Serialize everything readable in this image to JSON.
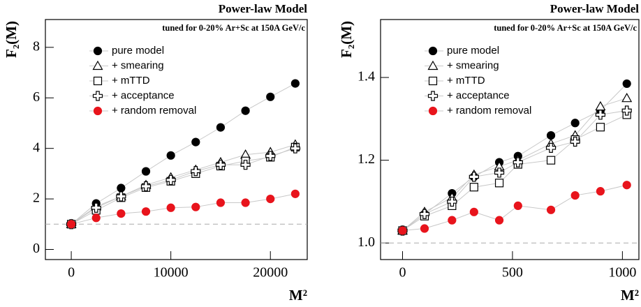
{
  "chart_data": [
    {
      "type": "scatter",
      "title": "Power-law Model",
      "subtitle": "tuned for 0-20% Ar+Sc at 150A GeV/c",
      "x_label": "M²",
      "y_label": "F₂(M)",
      "xlim": [
        -2600,
        23700
      ],
      "ylim": [
        -0.4,
        9.1
      ],
      "xticks": [
        0,
        10000,
        20000
      ],
      "yticks": [
        0,
        2,
        4,
        6,
        8
      ],
      "reference_line": 1,
      "x": [
        0,
        2500,
        5000,
        7500,
        10000,
        12500,
        15000,
        17500,
        20000,
        22500
      ],
      "series": [
        {
          "name": "pure model",
          "color": "#000000",
          "marker": "circle",
          "values": [
            1.0,
            1.82,
            2.43,
            3.09,
            3.72,
            4.25,
            4.83,
            5.49,
            6.04,
            6.57
          ]
        },
        {
          "name": "+ smearing",
          "color": "#000000",
          "marker": "triangle",
          "values": [
            1.0,
            1.7,
            2.1,
            2.55,
            2.85,
            3.15,
            3.45,
            3.75,
            3.85,
            4.15
          ]
        },
        {
          "name": "+ mTTD",
          "color": "#000000",
          "marker": "square",
          "values": [
            1.0,
            1.55,
            2.05,
            2.45,
            2.7,
            3.0,
            3.3,
            3.5,
            3.65,
            4.05
          ]
        },
        {
          "name": "+ acceptance",
          "color": "#000000",
          "marker": "cross",
          "values": [
            1.0,
            1.65,
            2.1,
            2.5,
            2.75,
            3.1,
            3.35,
            3.35,
            3.7,
            4.0
          ]
        },
        {
          "name": "+ random removal",
          "color": "#e8141c",
          "marker": "circle",
          "values": [
            1.0,
            1.25,
            1.42,
            1.5,
            1.65,
            1.68,
            1.85,
            1.85,
            2.0,
            2.2
          ]
        }
      ]
    },
    {
      "type": "scatter",
      "title": "Power-law Model",
      "subtitle": "tuned for 0-20% Ar+Sc at 150A GeV/c",
      "x_label": "M²",
      "y_label": "F₂(M)",
      "xlim": [
        -100,
        1075
      ],
      "ylim": [
        0.96,
        1.54
      ],
      "xticks": [
        0,
        500,
        1000
      ],
      "yticks": [
        {
          "value": 1.0,
          "label": "1.0"
        },
        {
          "value": 1.2,
          "label": "1.2"
        },
        {
          "value": 1.4,
          "label": "1.4"
        }
      ],
      "reference_line": 1,
      "x": [
        0,
        100,
        225,
        325,
        440,
        525,
        675,
        785,
        900,
        1020
      ],
      "series": [
        {
          "name": "pure model",
          "color": "#000000",
          "marker": "circle",
          "values": [
            1.03,
            1.07,
            1.12,
            1.16,
            1.195,
            1.21,
            1.26,
            1.29,
            1.32,
            1.385
          ]
        },
        {
          "name": "+ smearing",
          "color": "#000000",
          "marker": "triangle",
          "values": [
            1.03,
            1.075,
            1.11,
            1.165,
            1.185,
            1.2,
            1.24,
            1.26,
            1.33,
            1.35
          ]
        },
        {
          "name": "+ mTTD",
          "color": "#000000",
          "marker": "square",
          "values": [
            1.03,
            1.065,
            1.09,
            1.135,
            1.145,
            1.19,
            1.2,
            1.25,
            1.28,
            1.31
          ]
        },
        {
          "name": "+ acceptance",
          "color": "#000000",
          "marker": "cross",
          "values": [
            1.03,
            1.07,
            1.1,
            1.16,
            1.17,
            1.195,
            1.23,
            1.245,
            1.31,
            1.32
          ]
        },
        {
          "name": "+ random removal",
          "color": "#e8141c",
          "marker": "circle",
          "values": [
            1.03,
            1.035,
            1.055,
            1.075,
            1.055,
            1.09,
            1.08,
            1.115,
            1.125,
            1.14
          ]
        }
      ]
    }
  ]
}
